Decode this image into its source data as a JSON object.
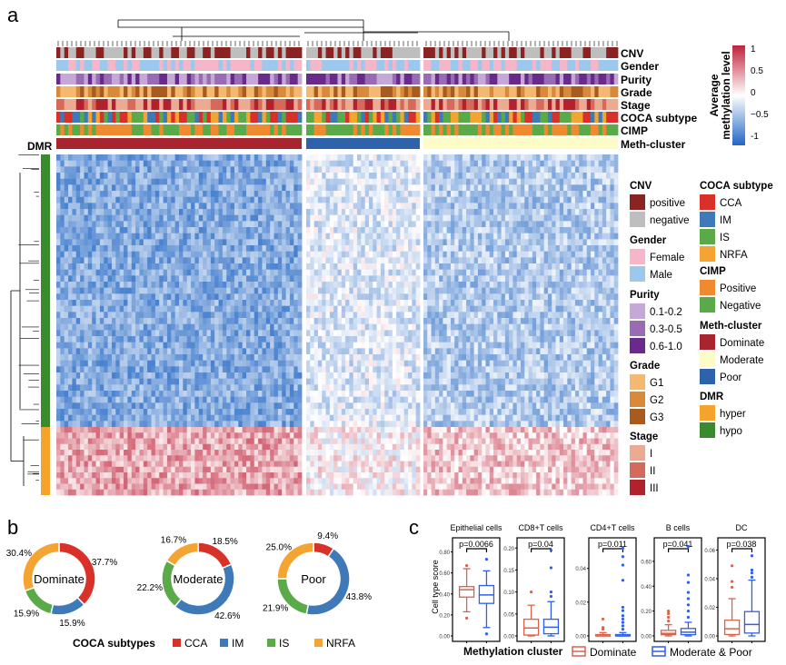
{
  "panel_labels": {
    "a": "a",
    "b": "b",
    "c": "c"
  },
  "heatmap": {
    "annotation_tracks": [
      "CNV",
      "Gender",
      "Purity",
      "Grade",
      "Stage",
      "COCA subtype",
      "CIMP",
      "Meth-cluster"
    ],
    "row_annotation": "DMR",
    "colorbar": {
      "title_line1": "Average",
      "title_line2": "methylation level",
      "ticks": [
        "1",
        "0.5",
        "0",
        "−0.5",
        "-1"
      ],
      "low": "#2166c4",
      "mid": "#ffffff",
      "high": "#c0223a"
    },
    "legends": [
      {
        "title": "CNV",
        "items": [
          {
            "label": "positive",
            "color": "#8b2323"
          },
          {
            "label": "negative",
            "color": "#bebebe"
          }
        ]
      },
      {
        "title": "Gender",
        "items": [
          {
            "label": "Female",
            "color": "#f4b6c8"
          },
          {
            "label": "Male",
            "color": "#9cc8ee"
          }
        ]
      },
      {
        "title": "Purity",
        "items": [
          {
            "label": "0.1-0.2",
            "color": "#c6a8d6"
          },
          {
            "label": "0.3-0.5",
            "color": "#9a6bb5"
          },
          {
            "label": "0.6-1.0",
            "color": "#6a2a8c"
          }
        ]
      },
      {
        "title": "Grade",
        "items": [
          {
            "label": "G1",
            "color": "#f4b870"
          },
          {
            "label": "G2",
            "color": "#d9893a"
          },
          {
            "label": "G3",
            "color": "#a95a1e"
          }
        ]
      },
      {
        "title": "Stage",
        "items": [
          {
            "label": "I",
            "color": "#ebab92"
          },
          {
            "label": "II",
            "color": "#d56a5a"
          },
          {
            "label": "III",
            "color": "#b2212e"
          }
        ]
      },
      {
        "title": "COCA subtype",
        "items": [
          {
            "label": "CCA",
            "color": "#d9302a"
          },
          {
            "label": "IM",
            "color": "#3f7ab8"
          },
          {
            "label": "IS",
            "color": "#5aaa4a"
          },
          {
            "label": "NRFA",
            "color": "#f4a430"
          }
        ]
      },
      {
        "title": "CIMP",
        "items": [
          {
            "label": "Positive",
            "color": "#f08a30"
          },
          {
            "label": "Negative",
            "color": "#5aaa4a"
          }
        ]
      },
      {
        "title": "Meth-cluster",
        "items": [
          {
            "label": "Dominate",
            "color": "#a8242e"
          },
          {
            "label": "Moderate",
            "color": "#fdfbc6"
          },
          {
            "label": "Poor",
            "color": "#2e63ac"
          }
        ]
      },
      {
        "title": "DMR",
        "items": [
          {
            "label": "hyper",
            "color": "#f4a42a"
          },
          {
            "label": "hypo",
            "color": "#3a8a2e"
          }
        ]
      }
    ]
  },
  "chart_data": [
    {
      "type": "pie",
      "variant": "donut",
      "title": "Dominate",
      "categories": [
        "CCA",
        "IM",
        "IS",
        "NRFA"
      ],
      "values": [
        37.7,
        15.9,
        15.9,
        30.4
      ],
      "labels": [
        "37.7%",
        "15.9%",
        "15.9%",
        "30.4%"
      ]
    },
    {
      "type": "pie",
      "variant": "donut",
      "title": "Moderate",
      "categories": [
        "CCA",
        "IM",
        "IS",
        "NRFA"
      ],
      "values": [
        18.5,
        42.6,
        22.2,
        16.7
      ],
      "labels": [
        "18.5%",
        "42.6%",
        "22.2%",
        "16.7%"
      ]
    },
    {
      "type": "pie",
      "variant": "donut",
      "title": "Poor",
      "categories": [
        "CCA",
        "IM",
        "IS",
        "NRFA"
      ],
      "values": [
        9.4,
        43.8,
        21.9,
        25.0
      ],
      "labels": [
        "9.4%",
        "43.8%",
        "21.9%",
        "25.0%"
      ]
    },
    {
      "type": "boxplot",
      "ylabel": "Cell type score",
      "xlabel": "Methylation cluster",
      "legend": [
        {
          "name": "Dominate",
          "color": "#d9634a"
        },
        {
          "name": "Moderate & Poor",
          "color": "#2f5fe8"
        }
      ],
      "panels": [
        {
          "title": "Epithelial cells",
          "p": "p=0.0066",
          "ylim": [
            0,
            0.9
          ],
          "ticks": [
            "0.00",
            "0.20",
            "0.40",
            "0.60",
            "0.80"
          ],
          "tickvals": [
            0,
            0.2,
            0.4,
            0.6,
            0.8
          ],
          "groups": [
            {
              "q1": 0.37,
              "med": 0.44,
              "q3": 0.47,
              "lo": 0.23,
              "hi": 0.64,
              "out": [
                0.17,
                0.67
              ]
            },
            {
              "q1": 0.31,
              "med": 0.39,
              "q3": 0.48,
              "lo": 0.08,
              "hi": 0.62,
              "out": [
                0.02,
                0.73
              ]
            }
          ]
        },
        {
          "title": "CD8+T cells",
          "p": "p=0.04",
          "ylim": [
            0,
            0.215
          ],
          "ticks": [
            "0.00",
            "0.05",
            "0.10",
            "0.15",
            "0.20"
          ],
          "tickvals": [
            0,
            0.05,
            0.1,
            0.15,
            0.2
          ],
          "groups": [
            {
              "q1": 0.002,
              "med": 0.018,
              "q3": 0.038,
              "lo": 0,
              "hi": 0.07,
              "out": [
                0.1
              ]
            },
            {
              "q1": 0.005,
              "med": 0.02,
              "q3": 0.038,
              "lo": 0,
              "hi": 0.078,
              "out": [
                0.09,
                0.1,
                0.155,
                0.195
              ]
            }
          ]
        },
        {
          "title": "CD4+T cells",
          "p": "p=0.011",
          "ylim": [
            0,
            0.056
          ],
          "ticks": [
            "0.00",
            "0.02",
            "0.04"
          ],
          "tickvals": [
            0,
            0.02,
            0.04
          ],
          "groups": [
            {
              "q1": 0,
              "med": 0,
              "q3": 0.0008,
              "lo": 0,
              "hi": 0.002,
              "out": [
                0.004,
                0.005,
                0.01
              ]
            },
            {
              "q1": 0,
              "med": 0,
              "q3": 0.0008,
              "lo": 0,
              "hi": 0.002,
              "out": [
                0.004,
                0.006,
                0.008,
                0.01,
                0.012,
                0.015,
                0.017,
                0.033,
                0.042,
                0.047,
                0.052
              ]
            }
          ]
        },
        {
          "title": "B cells",
          "p": "p=0.041",
          "ylim": [
            0,
            0.76
          ],
          "ticks": [
            "0.00",
            "0.20",
            "0.40",
            "0.60"
          ],
          "tickvals": [
            0,
            0.2,
            0.4,
            0.6
          ],
          "groups": [
            {
              "q1": 0.01,
              "med": 0.02,
              "q3": 0.045,
              "lo": 0,
              "hi": 0.09,
              "out": [
                0.12,
                0.15,
                0.18,
                0.2
              ]
            },
            {
              "q1": 0.01,
              "med": 0.03,
              "q3": 0.06,
              "lo": 0,
              "hi": 0.11,
              "out": [
                0.15,
                0.2,
                0.25,
                0.3,
                0.35,
                0.43,
                0.49,
                0.72
              ]
            }
          ]
        },
        {
          "title": "DC",
          "p": "p=0.038",
          "ylim": [
            0,
            0.066
          ],
          "ticks": [
            "0.00",
            "0.02",
            "0.04",
            "0.06"
          ],
          "tickvals": [
            0,
            0.02,
            0.04,
            0.06
          ],
          "groups": [
            {
              "q1": 0.001,
              "med": 0.005,
              "q3": 0.011,
              "lo": 0,
              "hi": 0.026,
              "out": [
                0.034,
                0.038,
                0.049
              ]
            },
            {
              "q1": 0.002,
              "med": 0.008,
              "q3": 0.017,
              "lo": 0,
              "hi": 0.039,
              "out": [
                0.041,
                0.044,
                0.046,
                0.056
              ]
            }
          ]
        }
      ]
    }
  ],
  "donut_legend": {
    "title": "COCA subtypes",
    "items": [
      {
        "label": "CCA",
        "color": "#d9302a"
      },
      {
        "label": "IM",
        "color": "#3f7ab8"
      },
      {
        "label": "IS",
        "color": "#5aaa4a"
      },
      {
        "label": "NRFA",
        "color": "#f4a430"
      }
    ]
  }
}
